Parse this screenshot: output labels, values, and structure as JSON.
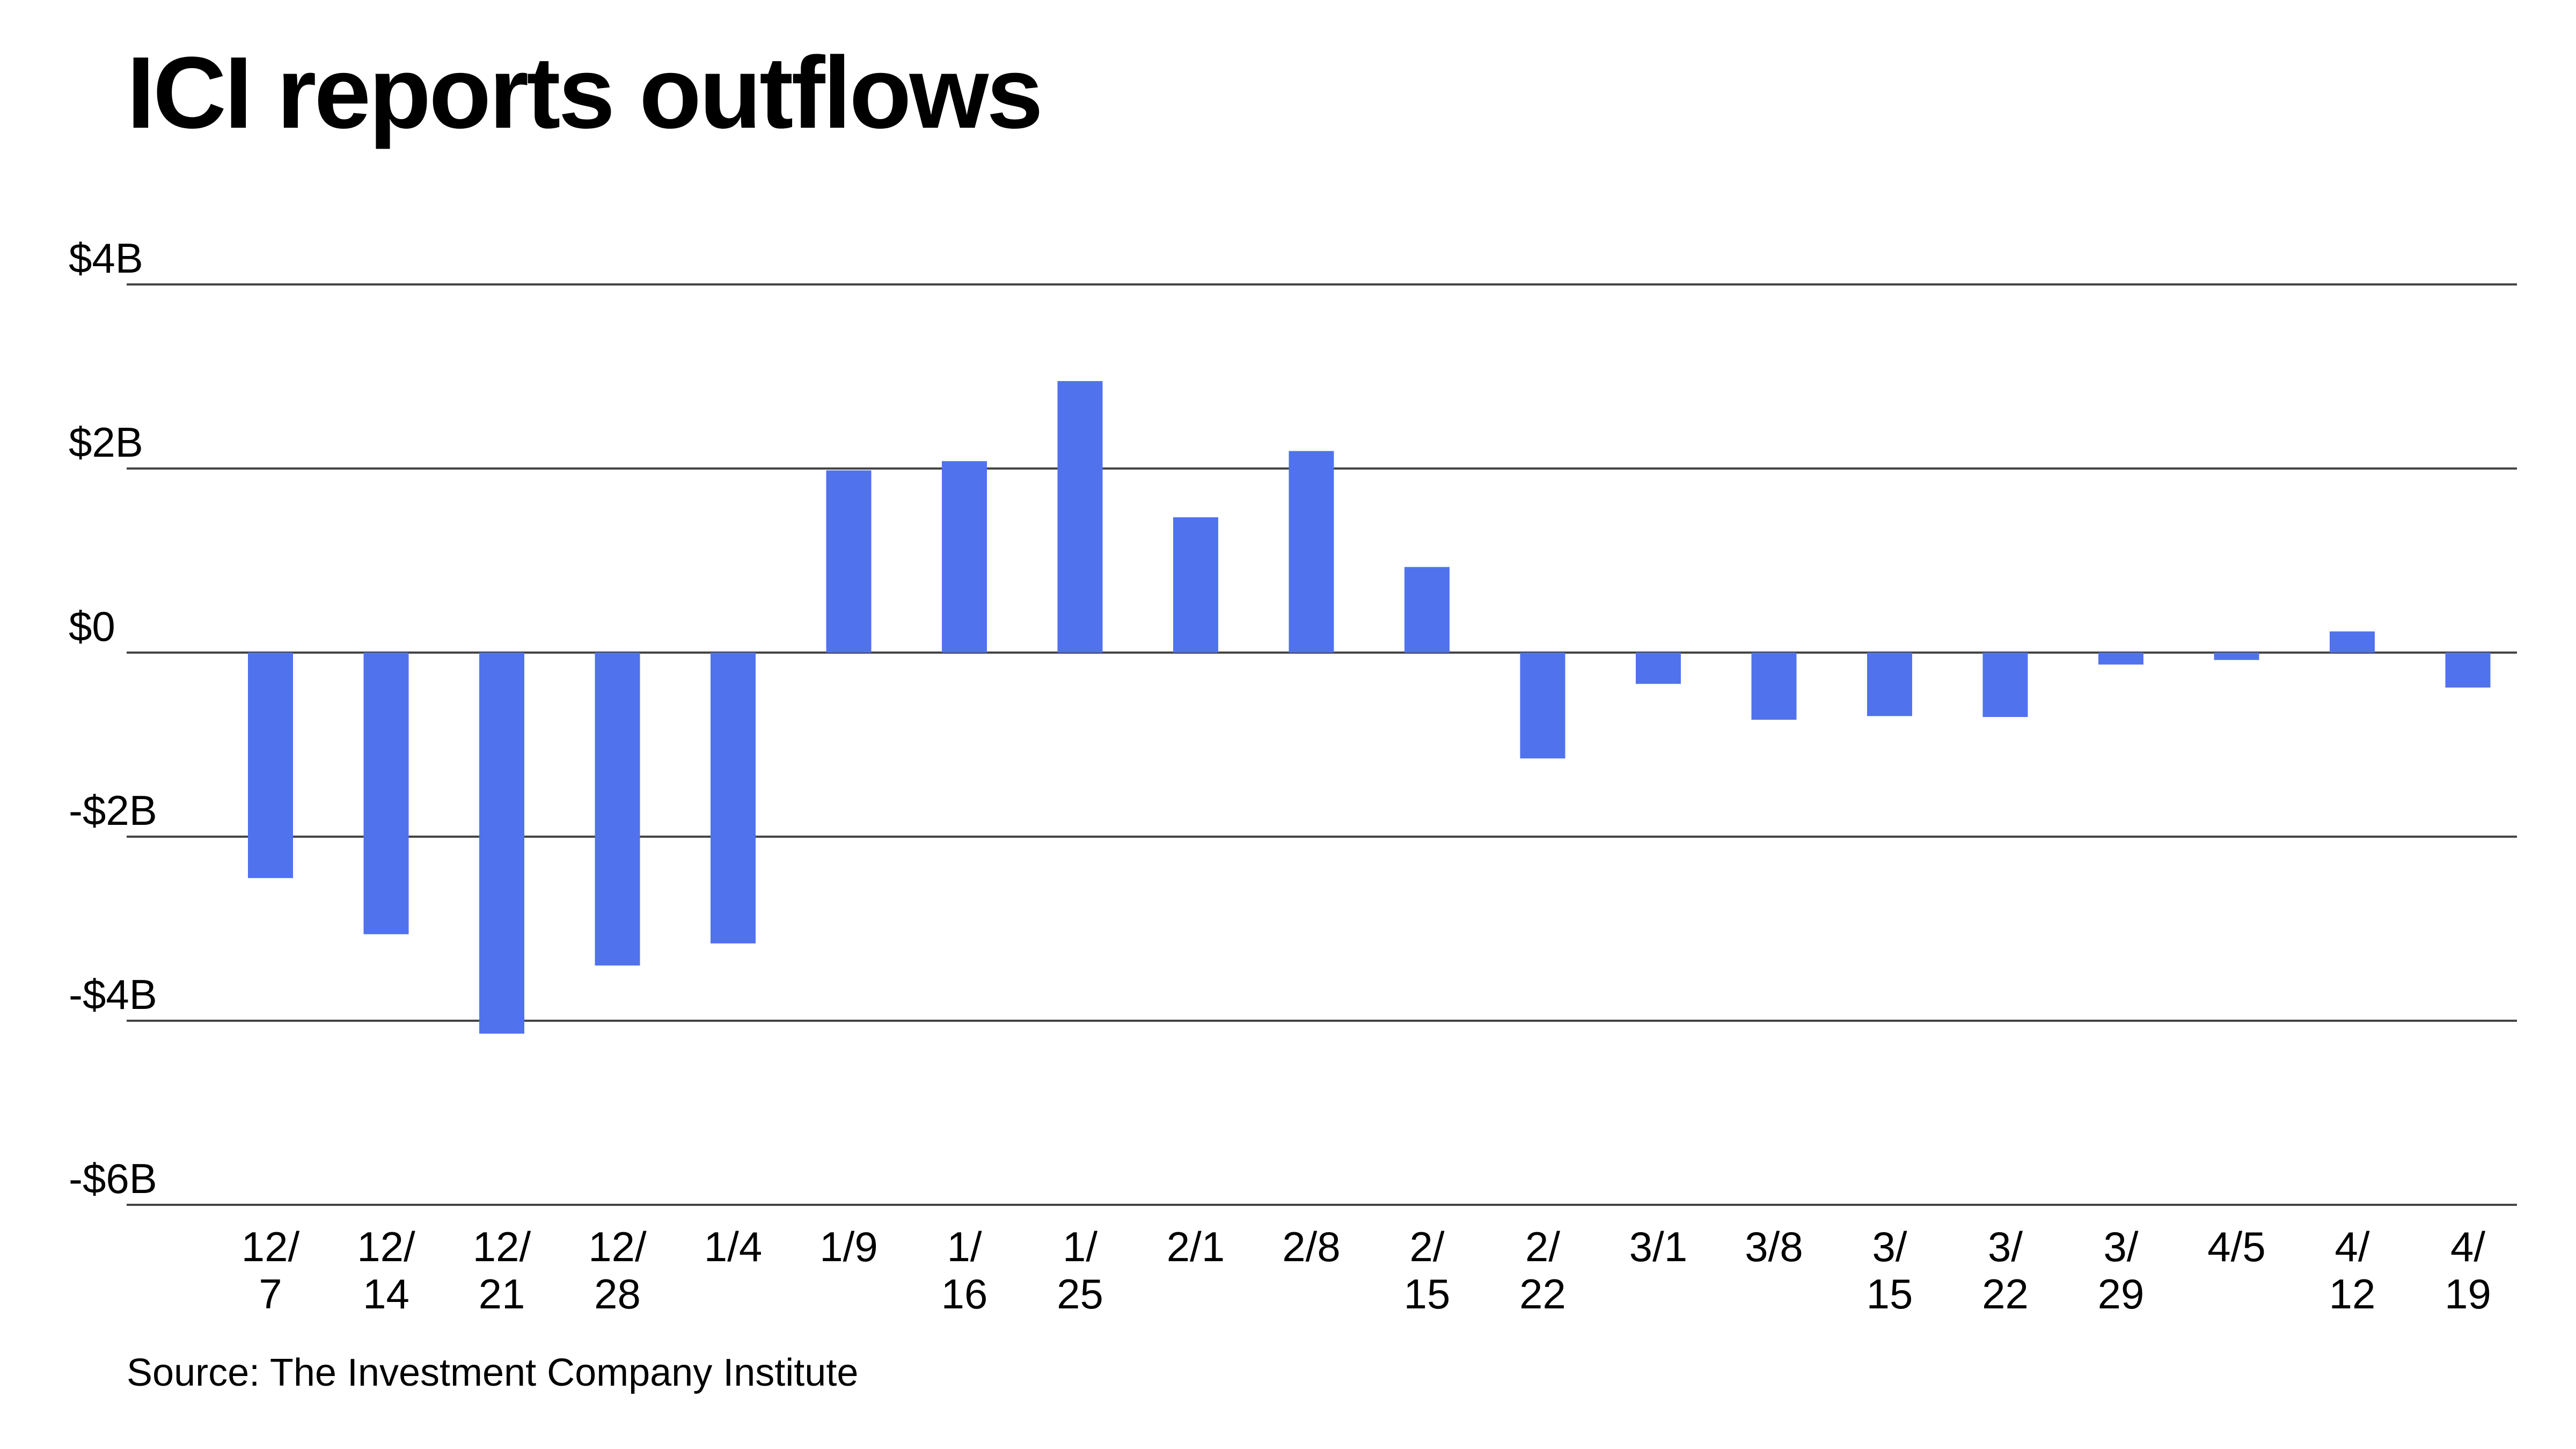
{
  "title": "ICI reports outflows",
  "source": "Source: The Investment Company Institute",
  "colors": {
    "bar": "#5072ed",
    "grid": "#444444",
    "text": "#000000",
    "background": "#ffffff"
  },
  "chart_data": {
    "type": "bar",
    "title": "ICI reports outflows",
    "xlabel": "",
    "ylabel": "",
    "ylim": [
      -6,
      4
    ],
    "y_ticks": [
      {
        "value": 4,
        "label": "$4B"
      },
      {
        "value": 2,
        "label": "$2B"
      },
      {
        "value": 0,
        "label": "$0"
      },
      {
        "value": -2,
        "label": "-$2B"
      },
      {
        "value": -4,
        "label": "-$4B"
      },
      {
        "value": -6,
        "label": "-$6B"
      }
    ],
    "grid": true,
    "legend": "none",
    "categories": [
      [
        "12/",
        "7"
      ],
      [
        "12/",
        "14"
      ],
      [
        "12/",
        "21"
      ],
      [
        "12/",
        "28"
      ],
      [
        "1/4"
      ],
      [
        "1/9"
      ],
      [
        "1/",
        "16"
      ],
      [
        "1/",
        "25"
      ],
      [
        "2/1"
      ],
      [
        "2/8"
      ],
      [
        "2/",
        "15"
      ],
      [
        "2/",
        "22"
      ],
      [
        "3/1"
      ],
      [
        "3/8"
      ],
      [
        "3/",
        "15"
      ],
      [
        "3/",
        "22"
      ],
      [
        "3/",
        "29"
      ],
      [
        "4/5"
      ],
      [
        "4/",
        "12"
      ],
      [
        "4/",
        "19"
      ]
    ],
    "values": [
      -2.45,
      -3.06,
      -4.14,
      -3.4,
      -3.16,
      1.98,
      2.08,
      2.95,
      1.47,
      2.19,
      0.93,
      -1.15,
      -0.34,
      -0.73,
      -0.69,
      -0.7,
      -0.13,
      -0.08,
      0.23,
      -0.38
    ]
  }
}
